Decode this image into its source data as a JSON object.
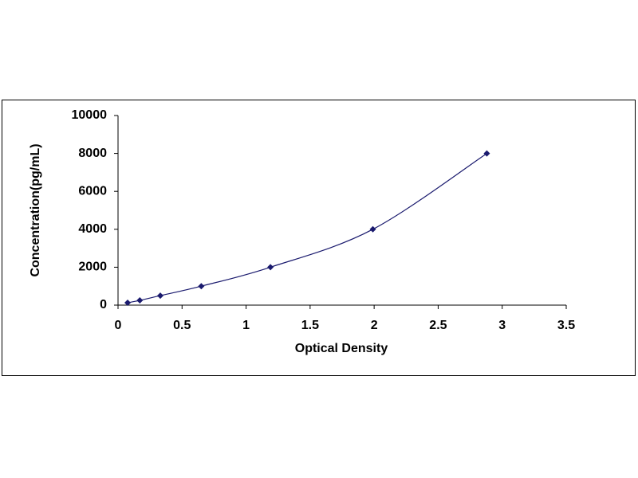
{
  "chart_data": {
    "type": "scatter",
    "smooth": true,
    "marker": "diamond",
    "x_label": "Optical Density",
    "y_label": "Concentration(pg/mL)",
    "series": [
      {
        "color": "#1a1a6e",
        "x": [
          0.075,
          0.17,
          0.33,
          0.65,
          1.19,
          1.99,
          2.88
        ],
        "values": [
          125,
          250,
          500,
          1000,
          2000,
          4000,
          8000
        ]
      }
    ],
    "xlim": [
      0,
      3.5
    ],
    "xticks": [
      0,
      0.5,
      1,
      1.5,
      2,
      2.5,
      3,
      3.5
    ],
    "ylim": [
      0,
      10000
    ],
    "yticks": [
      0,
      2000,
      4000,
      6000,
      8000,
      10000
    ]
  }
}
